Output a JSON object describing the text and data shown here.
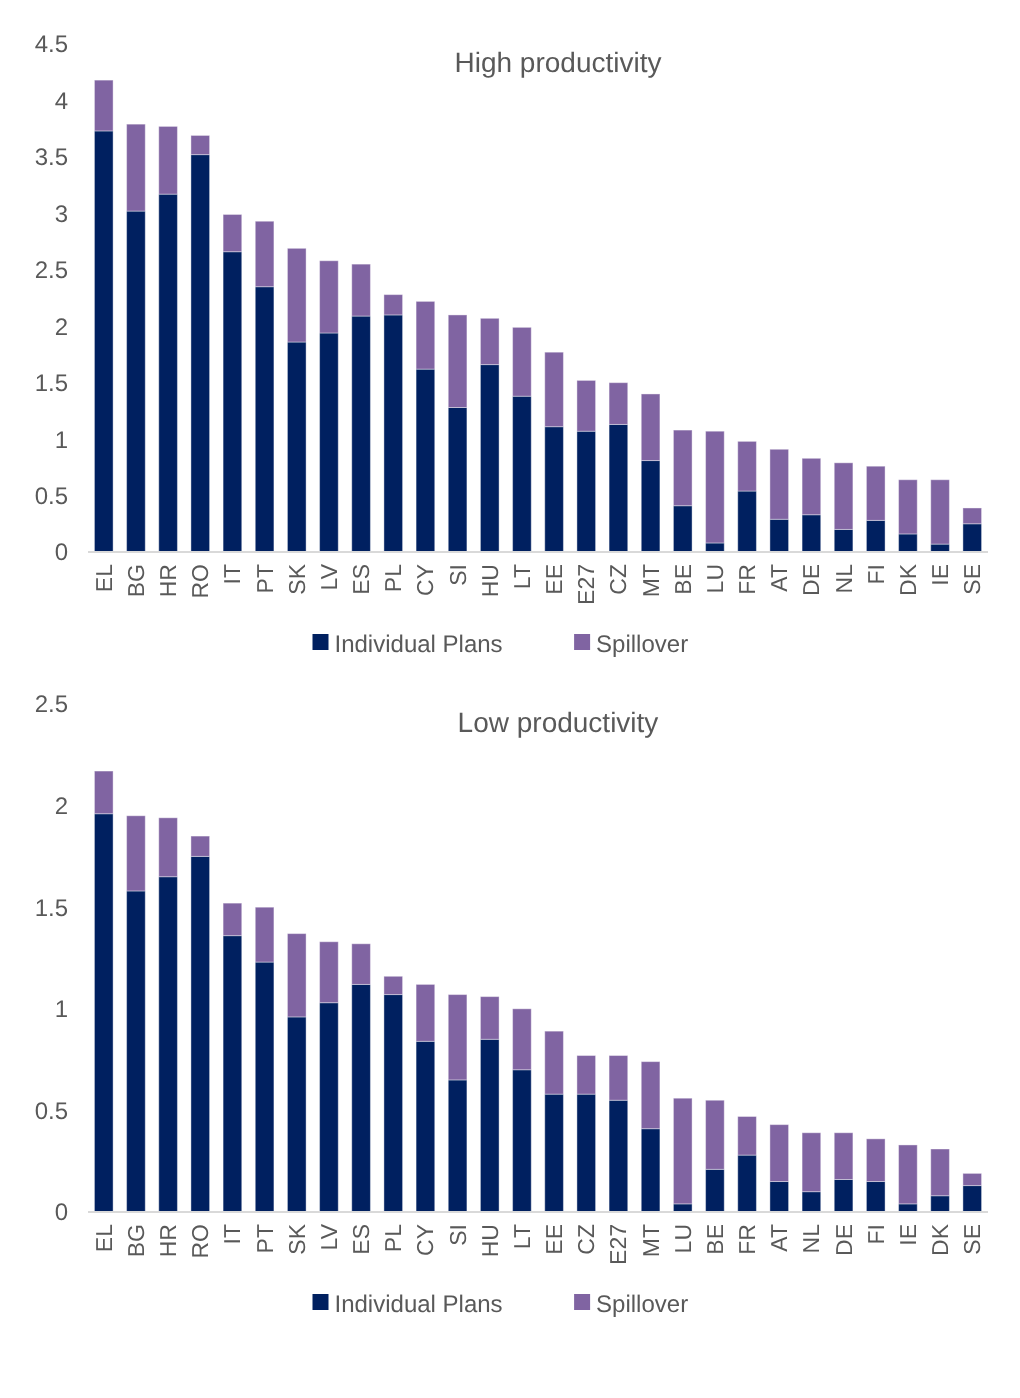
{
  "chart_data": [
    {
      "type": "bar",
      "title": "High productivity",
      "stacked": true,
      "legend": "bottom",
      "grid": false,
      "categories": [
        "EL",
        "BG",
        "HR",
        "RO",
        "IT",
        "PT",
        "SK",
        "LV",
        "ES",
        "PL",
        "CY",
        "SI",
        "HU",
        "LT",
        "EE",
        "E27",
        "CZ",
        "MT",
        "BE",
        "LU",
        "FR",
        "AT",
        "DE",
        "NL",
        "FI",
        "DK",
        "IE",
        "SE"
      ],
      "series": [
        {
          "name": "Individual Plans",
          "color": "#002060",
          "values": [
            3.73,
            3.02,
            3.17,
            3.52,
            2.66,
            2.35,
            1.86,
            1.94,
            2.09,
            2.1,
            1.62,
            1.28,
            1.66,
            1.38,
            1.11,
            1.07,
            1.13,
            0.81,
            0.41,
            0.08,
            0.54,
            0.29,
            0.33,
            0.2,
            0.28,
            0.16,
            0.07,
            0.25
          ]
        },
        {
          "name": "Spillover",
          "color": "#8064a2",
          "values": [
            0.45,
            0.77,
            0.6,
            0.17,
            0.33,
            0.58,
            0.83,
            0.64,
            0.46,
            0.18,
            0.6,
            0.82,
            0.41,
            0.61,
            0.66,
            0.45,
            0.37,
            0.59,
            0.67,
            0.99,
            0.44,
            0.62,
            0.5,
            0.59,
            0.48,
            0.48,
            0.57,
            0.14
          ]
        }
      ],
      "ylim": [
        0,
        4.5
      ],
      "yticks": [
        0,
        0.5,
        1,
        1.5,
        2,
        2.5,
        3,
        3.5,
        4,
        4.5
      ]
    },
    {
      "type": "bar",
      "title": "Low productivity",
      "stacked": true,
      "legend": "bottom",
      "grid": false,
      "categories": [
        "EL",
        "BG",
        "HR",
        "RO",
        "IT",
        "PT",
        "SK",
        "LV",
        "ES",
        "PL",
        "CY",
        "SI",
        "HU",
        "LT",
        "EE",
        "CZ",
        "E27",
        "MT",
        "LU",
        "BE",
        "FR",
        "AT",
        "NL",
        "DE",
        "FI",
        "IE",
        "DK",
        "SE"
      ],
      "series": [
        {
          "name": "Individual Plans",
          "color": "#002060",
          "values": [
            1.96,
            1.58,
            1.65,
            1.75,
            1.36,
            1.23,
            0.96,
            1.03,
            1.12,
            1.07,
            0.84,
            0.65,
            0.85,
            0.7,
            0.58,
            0.58,
            0.55,
            0.41,
            0.04,
            0.21,
            0.28,
            0.15,
            0.1,
            0.16,
            0.15,
            0.04,
            0.08,
            0.13
          ]
        },
        {
          "name": "Spillover",
          "color": "#8064a2",
          "values": [
            0.21,
            0.37,
            0.29,
            0.1,
            0.16,
            0.27,
            0.41,
            0.3,
            0.2,
            0.09,
            0.28,
            0.42,
            0.21,
            0.3,
            0.31,
            0.19,
            0.22,
            0.33,
            0.52,
            0.34,
            0.19,
            0.28,
            0.29,
            0.23,
            0.21,
            0.29,
            0.23,
            0.06
          ]
        }
      ],
      "ylim": [
        0,
        2.5
      ],
      "yticks": [
        0,
        0.5,
        1,
        1.5,
        2,
        2.5
      ]
    }
  ]
}
